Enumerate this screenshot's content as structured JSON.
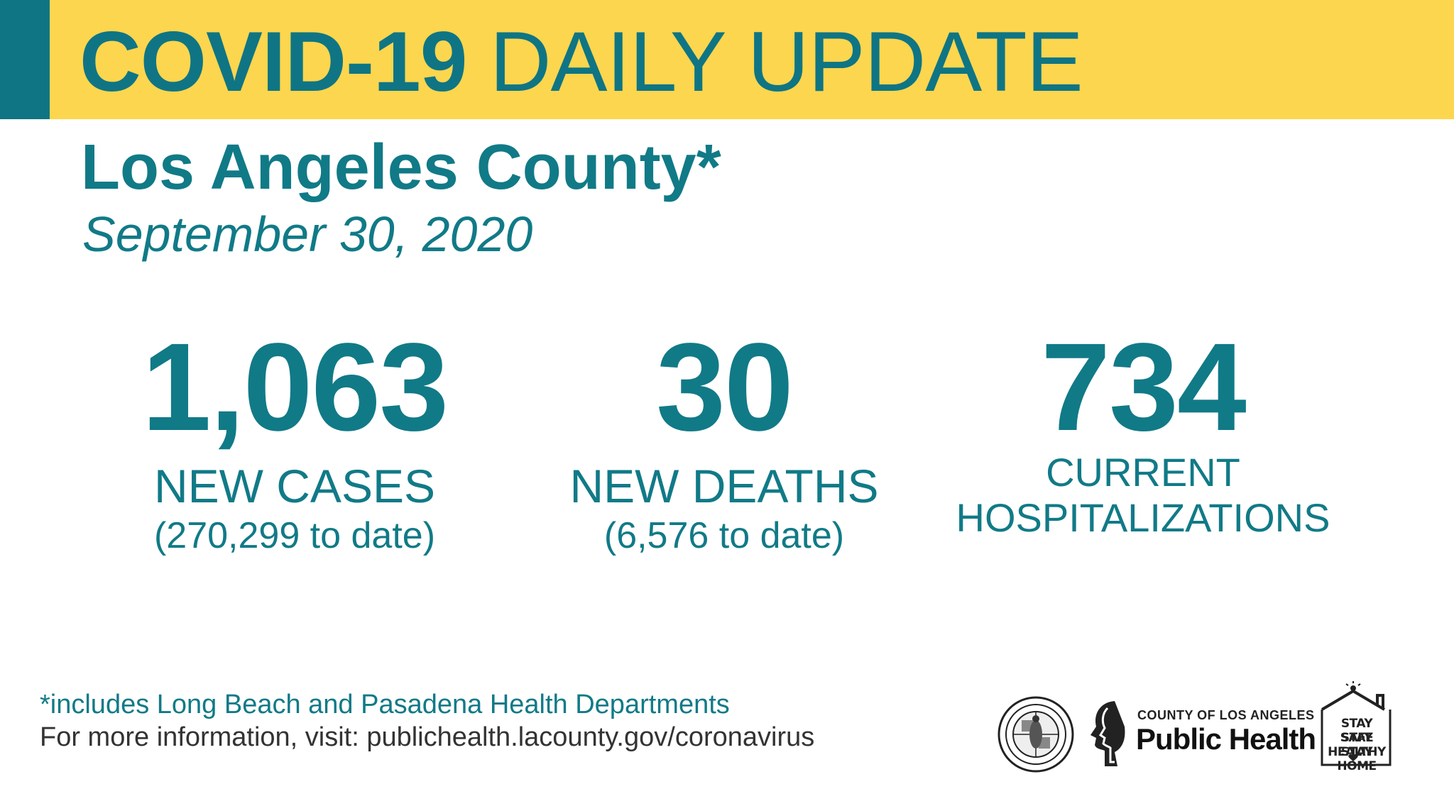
{
  "banner": {
    "title_bold": "COVID-19",
    "title_rest": "DAILY UPDATE"
  },
  "header": {
    "county": "Los Angeles County*",
    "date": "September 30, 2020"
  },
  "stats": {
    "cases": {
      "value": "1,063",
      "label": "NEW CASES",
      "sub": "(270,299 to date)"
    },
    "deaths": {
      "value": "30",
      "label": "NEW DEATHS",
      "sub": "(6,576 to date)"
    },
    "hospitalizations": {
      "value": "734",
      "label_line1": "CURRENT",
      "label_line2": "HOSPITALIZATIONS"
    }
  },
  "footer": {
    "note": "*includes Long Beach and Pasadena Health Departments",
    "info": "For more information, visit: publichealth.lacounty.gov/coronavirus"
  },
  "logos": {
    "seal_icon": "county-seal-icon",
    "public_health_small": "COUNTY OF LOS ANGELES",
    "public_health_big": "Public Health",
    "stay_line1": "STAY SAFE",
    "stay_line2": "STAY HEALTHY",
    "stay_line3": "STAY HOME"
  },
  "colors": {
    "teal": "#117a87",
    "banner_yellow": "#fcd64e",
    "accent_teal": "#0f7584"
  }
}
